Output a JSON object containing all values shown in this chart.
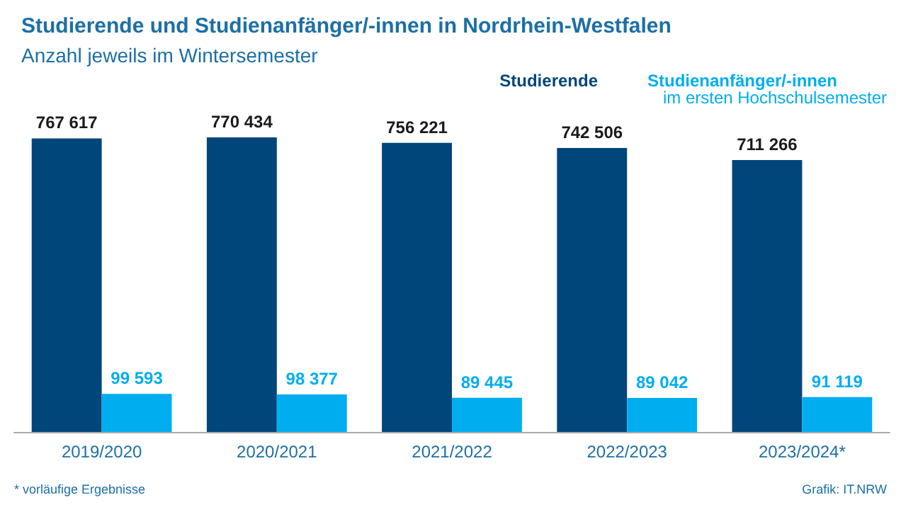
{
  "chart_data": {
    "type": "bar",
    "title": "Studierende und Studienanfänger/-innen in Nordrhein-Westfalen",
    "subtitle": "Anzahl jeweils im Wintersemester",
    "categories": [
      "2019/2020",
      "2020/2021",
      "2021/2022",
      "2022/2023",
      "2023/2024*"
    ],
    "series": [
      {
        "name": "Studierende",
        "color": "#00467a",
        "values": [
          767617,
          770434,
          756221,
          742506,
          711266
        ],
        "value_labels": [
          "767 617",
          "770 434",
          "756 221",
          "742 506",
          "711 266"
        ]
      },
      {
        "name": "Studienanfänger/-innen",
        "color": "#00aeef",
        "values": [
          99593,
          98377,
          89445,
          89042,
          91119
        ],
        "value_labels": [
          "99 593",
          "98 377",
          "89 445",
          "89 042",
          "91 119"
        ]
      }
    ],
    "legend": "top right",
    "annotations": [
      "im ersten Hochschulsemester",
      "* vorläufige Ergebnisse",
      "Grafik: IT.NRW"
    ]
  }
}
